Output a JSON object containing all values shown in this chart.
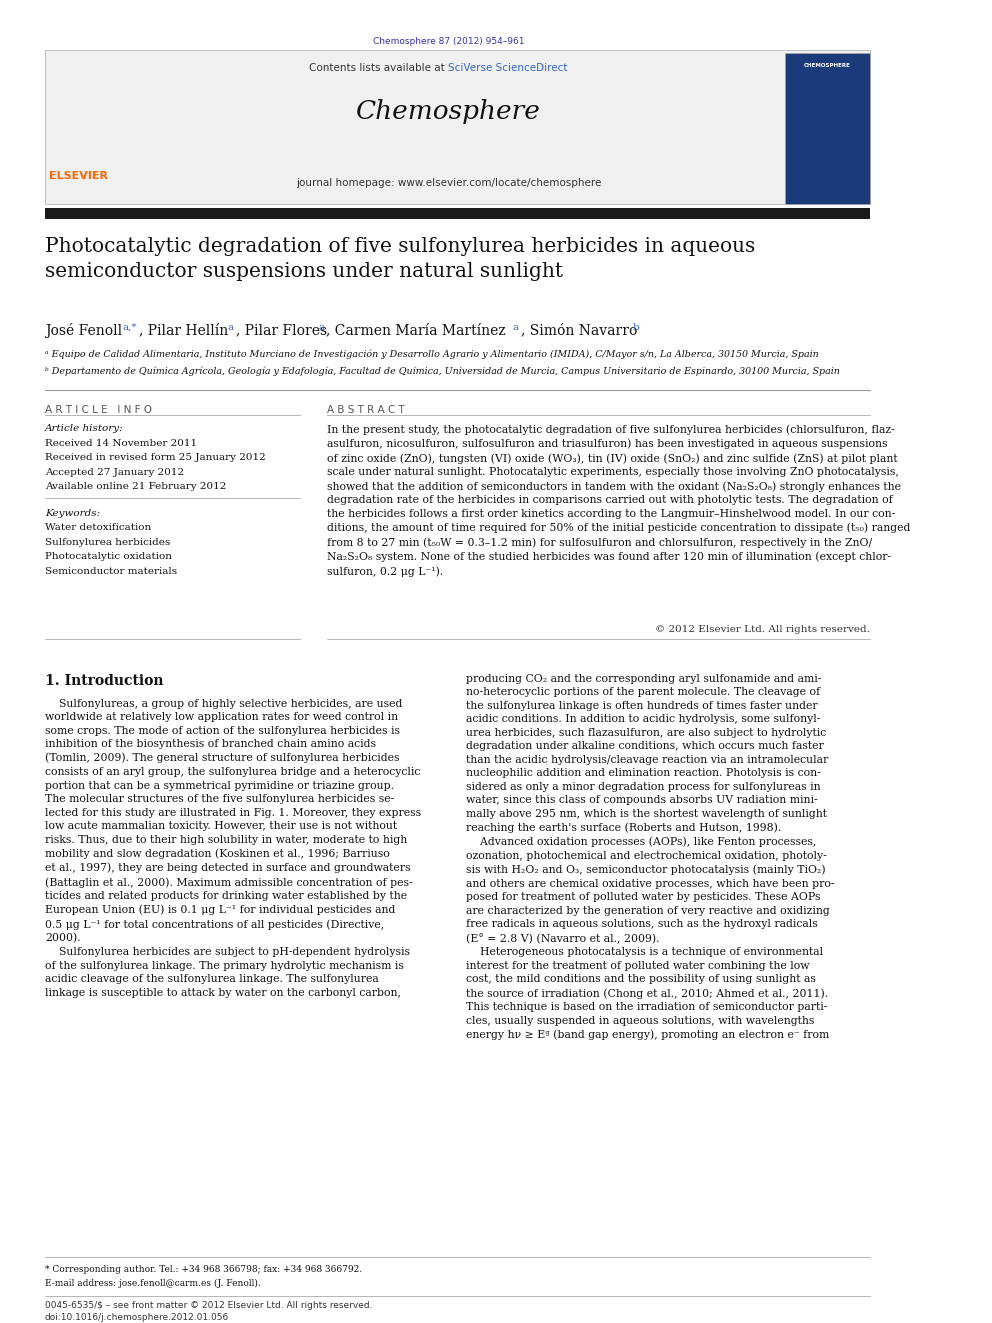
{
  "page_width": 9.92,
  "page_height": 13.23,
  "bg_color": "#ffffff",
  "journal_ref": "Chemosphere 87 (2012) 954–961",
  "journal_ref_color": "#3333aa",
  "header_bg": "#f0f0f0",
  "header_text1": "Contents lists available at ",
  "header_sciverse": "SciVerse ScienceDirect",
  "header_link_color": "#3366cc",
  "header_journal_name": "Chemosphere",
  "header_homepage_label": "journal homepage: www.elsevier.com/locate/chemosphere",
  "black_bar_color": "#1a1a1a",
  "article_title": "Photocatalytic degradation of five sulfonylurea herbicides in aqueous\nsemiconductor suspensions under natural sunlight",
  "affil_a": "ᵃ Equipo de Calidad Alimentaria, Instituto Murciano de Investigación y Desarrollo Agrario y Alimentario (IMIDA), C/Mayor s/n, La Alberca, 30150 Murcia, Spain",
  "affil_b": "ᵇ Departamento de Química Agrícola, Geología y Edafología, Facultad de Química, Universidad de Murcia, Campus Universitario de Espinardo, 30100 Murcia, Spain",
  "section_article_info": "A R T I C L E   I N F O",
  "section_abstract": "A B S T R A C T",
  "article_history_label": "Article history:",
  "received1": "Received 14 November 2011",
  "received2": "Received in revised form 25 January 2012",
  "accepted": "Accepted 27 January 2012",
  "available": "Available online 21 February 2012",
  "keywords_label": "Keywords:",
  "keyword1": "Water detoxification",
  "keyword2": "Sulfonylurea herbicides",
  "keyword3": "Photocatalytic oxidation",
  "keyword4": "Semiconductor materials",
  "abstract_text": "In the present study, the photocatalytic degradation of five sulfonylurea herbicides (chlorsulfuron, flaz-\nasulfuron, nicosulfuron, sulfosulfuron and triasulfuron) has been investigated in aqueous suspensions\nof zinc oxide (ZnO), tungsten (VI) oxide (WO₃), tin (IV) oxide (SnO₂) and zinc sulfide (ZnS) at pilot plant\nscale under natural sunlight. Photocatalytic experiments, especially those involving ZnO photocatalysis,\nshowed that the addition of semiconductors in tandem with the oxidant (Na₂S₂O₈) strongly enhances the\ndegradation rate of the herbicides in comparisons carried out with photolytic tests. The degradation of\nthe herbicides follows a first order kinetics according to the Langmuir–Hinshelwood model. In our con-\nditions, the amount of time required for 50% of the initial pesticide concentration to dissipate (t₅₀) ranged\nfrom 8 to 27 min (t₅₀W = 0.3–1.2 min) for sulfosulfuron and chlorsulfuron, respectively in the ZnO/\nNa₂S₂O₈ system. None of the studied herbicides was found after 120 min of illumination (except chlor-\nsulfuron, 0.2 μg L⁻¹).",
  "copyright": "© 2012 Elsevier Ltd. All rights reserved.",
  "intro_heading": "1. Introduction",
  "intro_col1": "    Sulfonylureas, a group of highly selective herbicides, are used\nworldwide at relatively low application rates for weed control in\nsome crops. The mode of action of the sulfonylurea herbicides is\ninhibition of the biosynthesis of branched chain amino acids\n(Tomlin, 2009). The general structure of sulfonylurea herbicides\nconsists of an aryl group, the sulfonylurea bridge and a heterocyclic\nportion that can be a symmetrical pyrimidine or triazine group.\nThe molecular structures of the five sulfonylurea herbicides se-\nlected for this study are illustrated in Fig. 1. Moreover, they express\nlow acute mammalian toxicity. However, their use is not without\nrisks. Thus, due to their high solubility in water, moderate to high\nmobility and slow degradation (Koskinen et al., 1996; Barriuso\net al., 1997), they are being detected in surface and groundwaters\n(Battaglin et al., 2000). Maximum admissible concentration of pes-\nticides and related products for drinking water established by the\nEuropean Union (EU) is 0.1 μg L⁻¹ for individual pesticides and\n0.5 μg L⁻¹ for total concentrations of all pesticides (Directive,\n2000).\n    Sulfonylurea herbicides are subject to pH-dependent hydrolysis\nof the sulfonylurea linkage. The primary hydrolytic mechanism is\nacidic cleavage of the sulfonylurea linkage. The sulfonylurea\nlinkage is susceptible to attack by water on the carbonyl carbon,",
  "intro_col2": "producing CO₂ and the corresponding aryl sulfonamide and ami-\nno-heterocyclic portions of the parent molecule. The cleavage of\nthe sulfonylurea linkage is often hundreds of times faster under\nacidic conditions. In addition to acidic hydrolysis, some sulfonyl-\nurea herbicides, such flazasulfuron, are also subject to hydrolytic\ndegradation under alkaline conditions, which occurs much faster\nthan the acidic hydrolysis/cleavage reaction via an intramolecular\nnucleophilic addition and elimination reaction. Photolysis is con-\nsidered as only a minor degradation process for sulfonylureas in\nwater, since this class of compounds absorbs UV radiation mini-\nmally above 295 nm, which is the shortest wavelength of sunlight\nreaching the earth's surface (Roberts and Hutson, 1998).\n    Advanced oxidation processes (AOPs), like Fenton processes,\nozonation, photochemical and electrochemical oxidation, photoly-\nsis with H₂O₂ and O₃, semiconductor photocatalysis (mainly TiO₂)\nand others are chemical oxidative processes, which have been pro-\nposed for treatment of polluted water by pesticides. These AOPs\nare characterized by the generation of very reactive and oxidizing\nfree radicals in aqueous solutions, such as the hydroxyl radicals\n(E° = 2.8 V) (Navarro et al., 2009).\n    Heterogeneous photocatalysis is a technique of environmental\ninterest for the treatment of polluted water combining the low\ncost, the mild conditions and the possibility of using sunlight as\nthe source of irradiation (Chong et al., 2010; Ahmed et al., 2011).\nThis technique is based on the irradiation of semiconductor parti-\ncles, usually suspended in aqueous solutions, with wavelengths\nenergy hν ≥ Eᵍ (band gap energy), promoting an electron e⁻ from",
  "footnote_star": "* Corresponding author. Tel.: +34 968 366798; fax: +34 968 366792.",
  "footnote_email": "E-mail address: jose.fenoll@carm.es (J. Fenoll).",
  "footer1": "0045-6535/$ – see front matter © 2012 Elsevier Ltd. All rights reserved.",
  "footer2": "doi:10.1016/j.chemosphere.2012.01.056"
}
